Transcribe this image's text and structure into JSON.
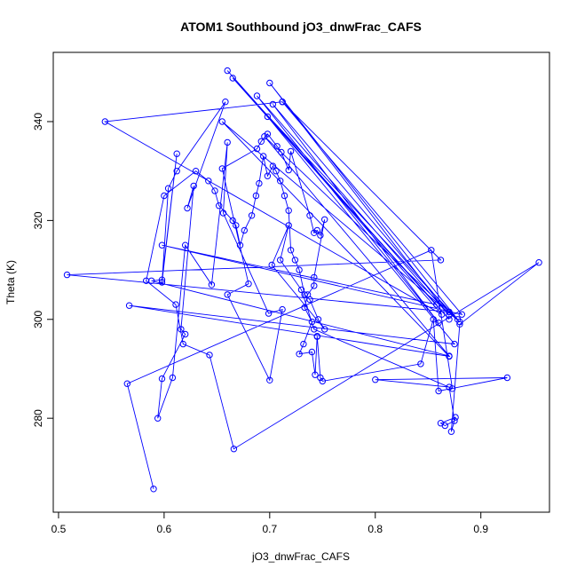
{
  "chart_data": {
    "type": "line",
    "title": "ATOM1 Southbound jO3_dnwFrac_CAFS",
    "xlabel": "jO3_dnwFrac_CAFS",
    "ylabel": "Theta (K)",
    "xlim": [
      0.495,
      0.965
    ],
    "ylim": [
      261,
      354
    ],
    "xticks": [
      0.5,
      0.6,
      0.7,
      0.8,
      0.9
    ],
    "xtick_labels": [
      "0.5",
      "0.6",
      "0.7",
      "0.8",
      "0.9"
    ],
    "yticks": [
      280,
      300,
      320,
      340
    ],
    "ytick_labels": [
      "280",
      "300",
      "320",
      "340"
    ],
    "grid": false,
    "legend": "none",
    "series": [
      {
        "color": "#0000ff",
        "marker": "open-circle",
        "x": [
          0.712,
          0.544,
          0.863,
          0.66,
          0.87,
          0.665,
          0.878,
          0.7,
          0.87,
          0.688,
          0.86,
          0.703,
          0.87,
          0.508,
          0.862,
          0.712,
          0.882,
          0.598,
          0.858,
          0.698,
          0.875,
          0.567,
          0.87,
          0.655,
          0.88,
          0.695,
          0.87,
          0.588,
          0.598,
          0.612,
          0.598,
          0.604,
          0.612,
          0.658,
          0.622,
          0.628,
          0.616,
          0.62,
          0.598,
          0.594,
          0.608,
          0.62,
          0.645,
          0.66,
          0.656,
          0.699,
          0.712,
          0.7,
          0.66,
          0.68,
          0.655,
          0.688,
          0.692,
          0.698,
          0.707,
          0.711,
          0.718,
          0.72,
          0.738,
          0.742,
          0.745,
          0.748,
          0.752,
          0.742,
          0.742,
          0.736,
          0.733,
          0.74,
          0.732,
          0.728,
          0.74,
          0.743,
          0.745,
          0.745,
          0.748,
          0.75,
          0.843,
          0.855,
          0.86,
          0.925,
          0.8,
          0.87,
          0.875,
          0.866,
          0.862,
          0.876,
          0.872,
          0.88,
          0.955,
          0.666,
          0.643,
          0.618,
          0.611,
          0.583,
          0.6,
          0.63,
          0.642,
          0.648,
          0.652,
          0.665,
          0.668,
          0.672,
          0.676,
          0.683,
          0.687,
          0.69,
          0.694,
          0.698,
          0.703,
          0.706,
          0.71,
          0.714,
          0.718,
          0.72,
          0.724,
          0.728,
          0.733,
          0.738,
          0.746,
          0.752,
          0.702,
          0.718,
          0.71,
          0.73,
          0.742,
          0.873,
          0.853,
          0.565,
          0.59
        ],
        "y": [
          344.0,
          340.0,
          301.0,
          350.3,
          300.0,
          348.8,
          300.0,
          347.8,
          300.8,
          345.2,
          299.3,
          343.5,
          301.5,
          309.0,
          312.0,
          344.0,
          301.0,
          315.0,
          303.0,
          341.0,
          295.0,
          302.8,
          292.5,
          340.0,
          299.5,
          337.0,
          292.6,
          307.8,
          308.0,
          333.5,
          307.5,
          326.5,
          330.0,
          344.0,
          322.5,
          327.0,
          298.0,
          297.0,
          288.0,
          280.0,
          288.2,
          315.0,
          307.0,
          335.8,
          321.5,
          301.2,
          302.0,
          287.7,
          305.0,
          307.2,
          330.5,
          334.5,
          336.0,
          337.5,
          335.0,
          333.8,
          330.2,
          334.0,
          321.0,
          317.5,
          318.0,
          317.0,
          320.2,
          308.5,
          306.8,
          305.0,
          302.4,
          299.5,
          295.0,
          293.0,
          293.4,
          288.8,
          296.6,
          296.5,
          288.2,
          287.5,
          291.0,
          300.0,
          285.5,
          288.2,
          287.8,
          286.3,
          279.5,
          278.5,
          279.0,
          280.2,
          277.3,
          299.0,
          311.5,
          273.8,
          292.8,
          295.0,
          303.0,
          307.8,
          325.0,
          330.0,
          328.0,
          326.0,
          323.0,
          320.0,
          319.0,
          315.0,
          318.0,
          321.0,
          325.0,
          327.5,
          333.0,
          329.0,
          331.0,
          330.0,
          328.0,
          325.0,
          322.0,
          314.0,
          312.0,
          310.0,
          305.0,
          304.0,
          300.0,
          298.0,
          311.0,
          319.0,
          312.0,
          306.0,
          298.0,
          286.0,
          314.0,
          287.0,
          265.7
        ]
      }
    ]
  }
}
